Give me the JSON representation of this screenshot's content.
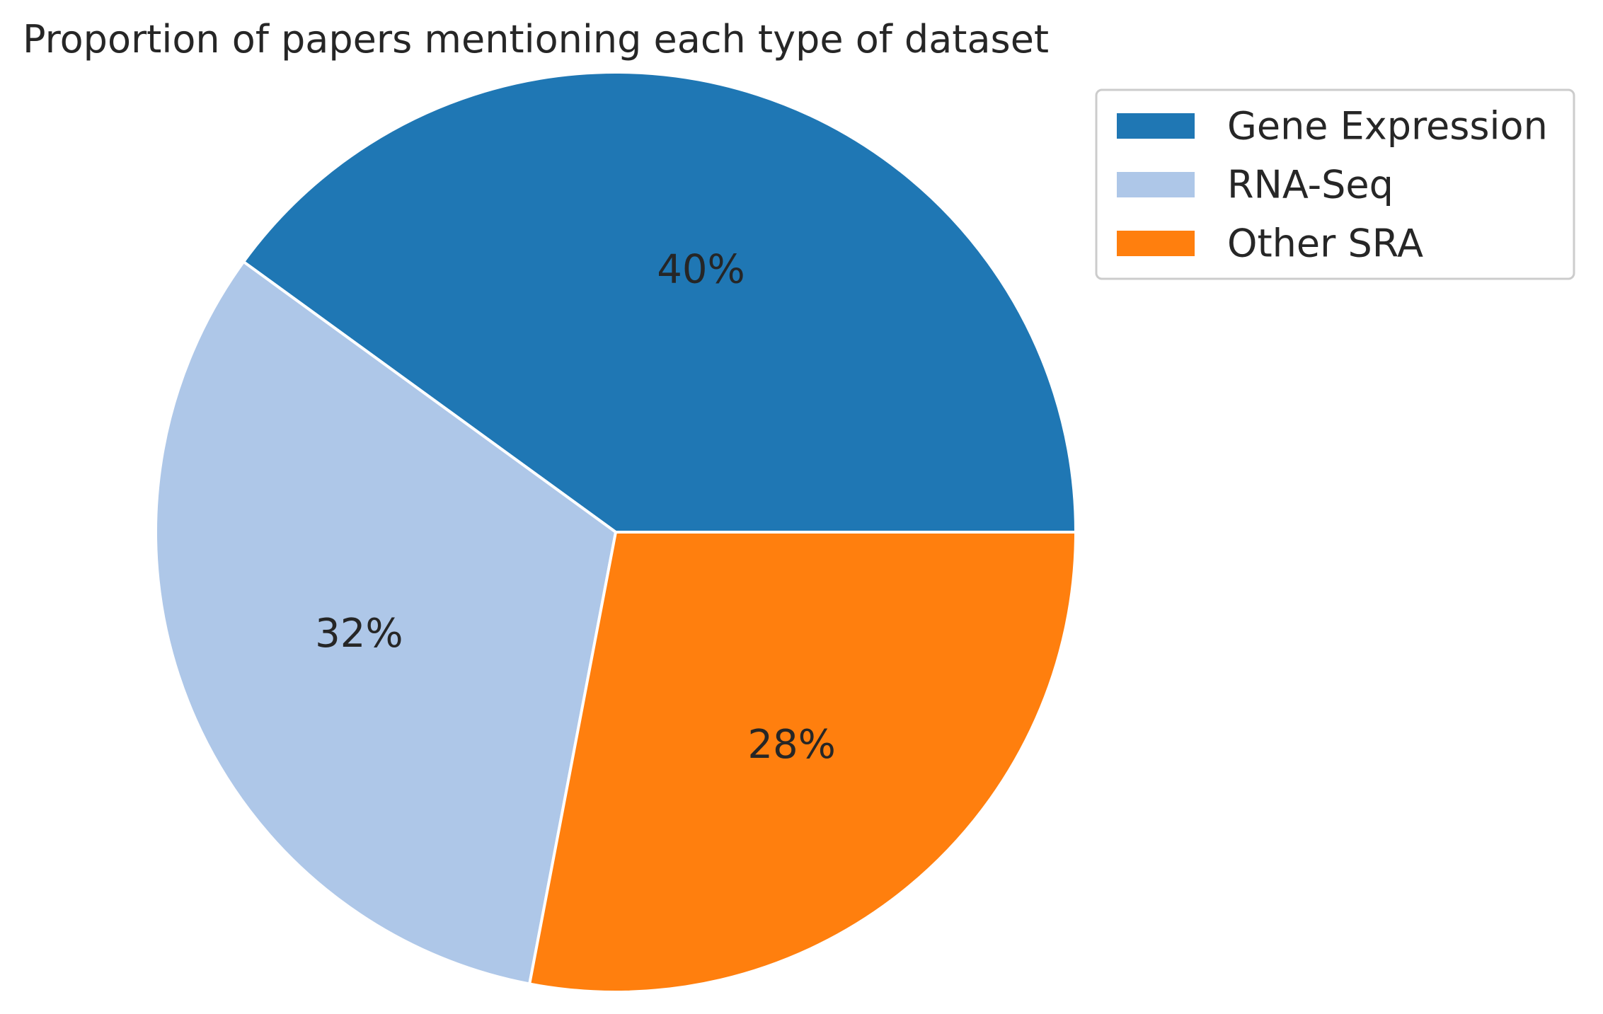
{
  "chart_data": {
    "type": "pie",
    "title": "Proportion of papers mentioning each type of dataset",
    "categories": [
      "Gene Expression",
      "RNA-Seq",
      "Other SRA"
    ],
    "values": [
      40,
      32,
      28
    ],
    "value_labels": [
      "40%",
      "32%",
      "28%"
    ],
    "colors": [
      "#1f77b4",
      "#aec7e8",
      "#ff7f0e"
    ],
    "start_angle_deg": 0,
    "direction": "counterclockwise",
    "legend": {
      "placement": "upper-right-outside",
      "entries": [
        "Gene Expression",
        "RNA-Seq",
        "Other SRA"
      ]
    }
  }
}
